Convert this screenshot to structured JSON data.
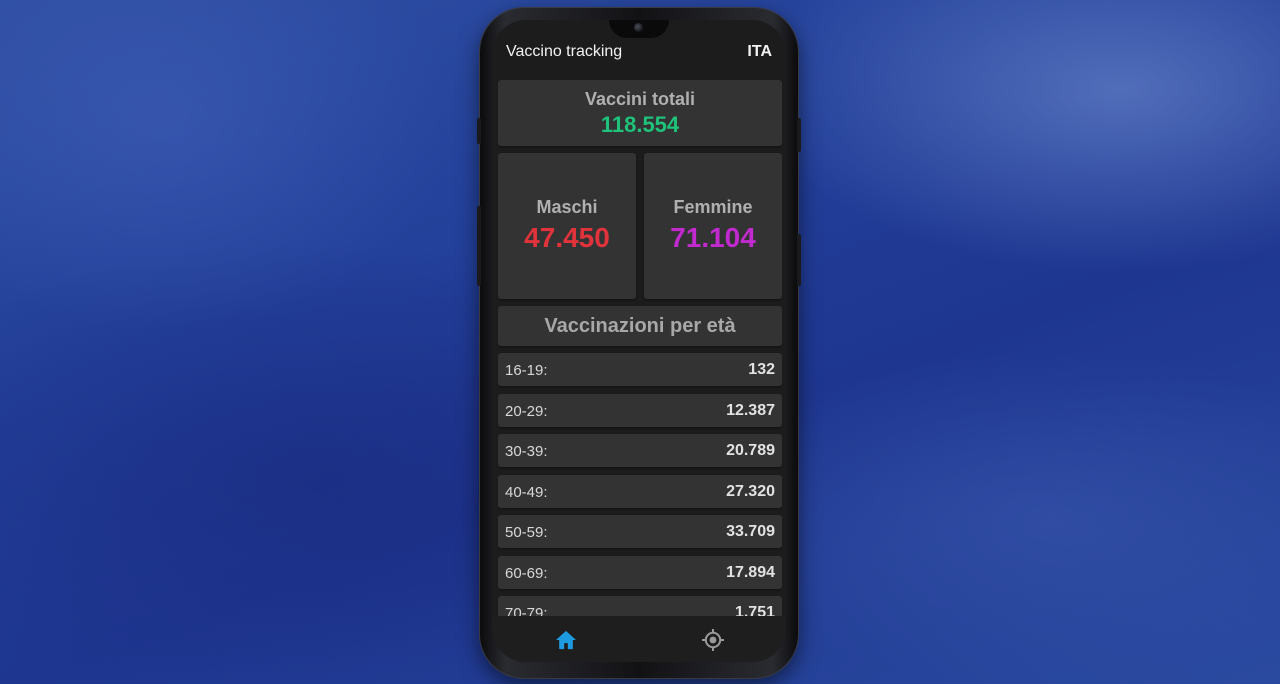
{
  "app": {
    "title": "Vaccino tracking",
    "language": "ITA"
  },
  "totals": {
    "label": "Vaccini totali",
    "value": "118.554"
  },
  "gender": {
    "male_label": "Maschi",
    "male_value": "47.450",
    "female_label": "Femmine",
    "female_value": "71.104"
  },
  "age_section": {
    "title": "Vaccinazioni per età",
    "rows": [
      {
        "range": "16-19:",
        "count": "132"
      },
      {
        "range": "20-29:",
        "count": "12.387"
      },
      {
        "range": "30-39:",
        "count": "20.789"
      },
      {
        "range": "40-49:",
        "count": "27.320"
      },
      {
        "range": "50-59:",
        "count": "33.709"
      },
      {
        "range": "60-69:",
        "count": "17.894"
      },
      {
        "range": "70-79:",
        "count": "1.751"
      }
    ]
  },
  "nav": {
    "items": [
      {
        "icon": "home-icon",
        "active": true
      },
      {
        "icon": "location-icon",
        "active": false
      }
    ]
  },
  "colors": {
    "total": "#1ec27a",
    "male": "#e0333b",
    "female": "#c22ad0",
    "nav_active": "#1e9be0",
    "nav_inactive": "#9a9a9a"
  }
}
